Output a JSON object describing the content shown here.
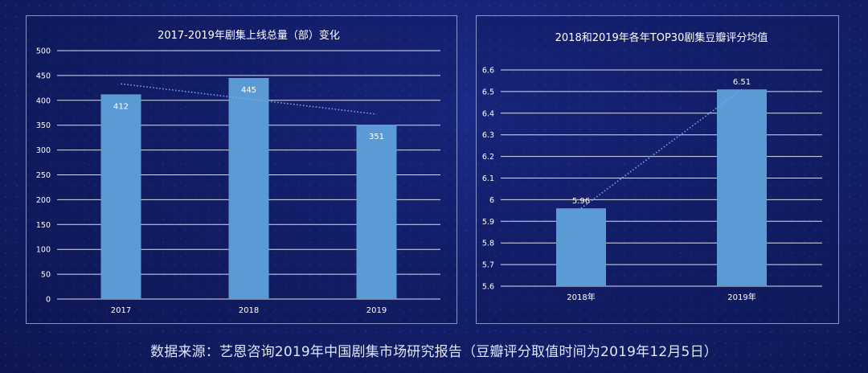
{
  "source_note": "数据来源：艺恩咨询2019年中国剧集市场研究报告（豆瓣评分取值时间为2019年12月5日）",
  "chart_data": [
    {
      "type": "bar",
      "title": "2017-2019年剧集上线总量（部）变化",
      "categories": [
        "2017",
        "2018",
        "2019"
      ],
      "values": [
        412,
        445,
        351
      ],
      "ylim": [
        0,
        500
      ],
      "yticks": [
        "0",
        "50",
        "100",
        "150",
        "200",
        "250",
        "300",
        "350",
        "400",
        "450",
        "500"
      ],
      "grid": true,
      "trendline": true,
      "bar_color": "#5b9bd5"
    },
    {
      "type": "bar",
      "title": "2018和2019年各年TOP30剧集豆瓣评分均值",
      "categories": [
        "2018年",
        "2019年"
      ],
      "values": [
        5.96,
        6.51
      ],
      "data_labels": [
        "5.96",
        "6.51"
      ],
      "ylim": [
        5.6,
        6.6
      ],
      "yticks": [
        "5.6",
        "5.7",
        "5.8",
        "5.9",
        "6",
        "6.1",
        "6.2",
        "6.3",
        "6.4",
        "6.5",
        "6.6"
      ],
      "grid": true,
      "trendline": true,
      "bar_color": "#5b9bd5"
    }
  ]
}
